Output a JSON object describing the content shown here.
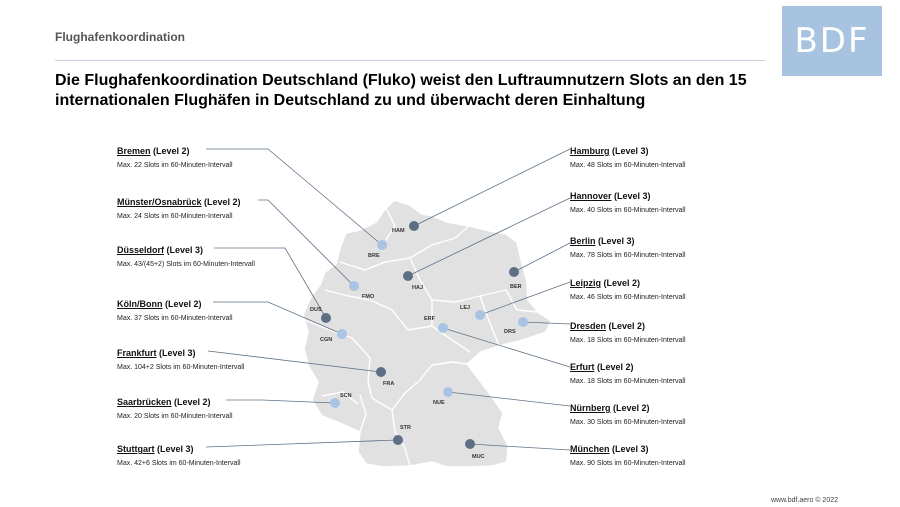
{
  "section_label": "Flughafenkoordination",
  "logo_text": "BDF",
  "headline": "Die Flughafenkoordination Deutschland (Fluko) weist den Luftraumnutzern Slots an den 15 internationalen Flughäfen in Deutschland zu und überwacht deren Einhaltung",
  "footer": "www.bdf.aero © 2022",
  "colors": {
    "level3_dot": "#5d6f85",
    "level2_dot": "#a9c3e4",
    "map_fill": "#e1e1e1",
    "map_border": "#ffffff",
    "leader_line": "#5f7287"
  },
  "airports": [
    {
      "name": "Bremen",
      "level": "(Level 2)",
      "slots": "Max. 22 Slots im 60-Minuten-Intervall",
      "code": "BRE",
      "level_num": 2
    },
    {
      "name": "Münster/Osnabrück",
      "level": "(Level 2)",
      "slots": "Max. 24 Slots im 60-Minuten-Intervall",
      "code": "FMO",
      "level_num": 2
    },
    {
      "name": "Düsseldorf",
      "level": "(Level 3)",
      "slots": "Max. 43/(45+2) Slots im 60-Minuten-Intervall",
      "code": "DUS",
      "level_num": 3
    },
    {
      "name": "Köln/Bonn",
      "level": "(Level 2)",
      "slots": "Max. 37 Slots im 60-Minuten-Intervall",
      "code": "CGN",
      "level_num": 2
    },
    {
      "name": "Frankfurt",
      "level": "(Level 3)",
      "slots": "Max. 104+2 Slots im 60-Minuten-Intervall",
      "code": "FRA",
      "level_num": 3
    },
    {
      "name": "Saarbrücken",
      "level": "(Level 2)",
      "slots": "Max. 20 Slots im 60-Minuten-Intervall",
      "code": "SCN",
      "level_num": 2
    },
    {
      "name": "Stuttgart",
      "level": "(Level 3)",
      "slots": "Max. 42+6 Slots im 60-Minuten-Intervall",
      "code": "STR",
      "level_num": 3
    },
    {
      "name": "Hamburg",
      "level": "(Level 3)",
      "slots": "Max. 48 Slots im 60-Minuten-Intervall",
      "code": "HAM",
      "level_num": 3
    },
    {
      "name": "Hannover",
      "level": "(Level 3)",
      "slots": "Max. 40 Slots im 60-Minuten-Intervall",
      "code": "HAJ",
      "level_num": 3
    },
    {
      "name": "Berlin",
      "level": "(Level 3)",
      "slots": "Max. 78 Slots im 60-Minuten-Intervall",
      "code": "BER",
      "level_num": 3
    },
    {
      "name": "Leipzig",
      "level": "(Level 2)",
      "slots": "Max. 46 Slots im 60-Minuten-Intervall",
      "code": "LEJ",
      "level_num": 2
    },
    {
      "name": "Dresden",
      "level": "(Level 2)",
      "slots": "Max. 18 Slots im 60-Minuten-Intervall",
      "code": "DRS",
      "level_num": 2
    },
    {
      "name": "Erfurt",
      "level": "(Level 2)",
      "slots": "Max. 18 Slots im 60-Minuten-Intervall",
      "code": "ERF",
      "level_num": 2
    },
    {
      "name": "Nürnberg",
      "level": "(Level 2)",
      "slots": "Max. 30 Slots im 60-Minuten-Intervall",
      "code": "NUE",
      "level_num": 2
    },
    {
      "name": "München",
      "level": "(Level 3)",
      "slots": "Max. 90 Slots im 60-Minuten-Intervall",
      "code": "MUC",
      "level_num": 3
    }
  ]
}
